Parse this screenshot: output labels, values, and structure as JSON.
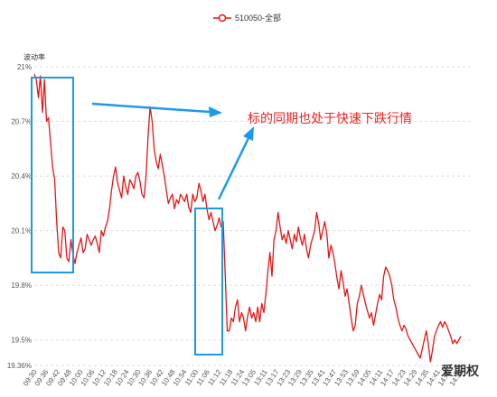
{
  "chart_data": {
    "type": "line",
    "legend": {
      "label": "510050-全部",
      "placement": "top-center"
    },
    "ylabel": "波动率",
    "ylim": [
      19.36,
      21.0
    ],
    "y_ticks": [
      "21%",
      "20.7%",
      "20.4%",
      "20.1%",
      "19.8%",
      "19.5%",
      "19.36%"
    ],
    "y_tick_values": [
      21.0,
      20.7,
      20.4,
      20.1,
      19.8,
      19.5,
      19.36
    ],
    "x_ticks": [
      "09:30",
      "09:36",
      "09:42",
      "09:48",
      "10:00",
      "10:06",
      "10:12",
      "10:18",
      "10:24",
      "10:30",
      "10:36",
      "10:42",
      "10:48",
      "10:54",
      "11:00",
      "11:06",
      "11:12",
      "11:18",
      "11:24",
      "13:05",
      "13:11",
      "13:17",
      "13:23",
      "13:29",
      "13:35",
      "13:41",
      "13:47",
      "13:53",
      "13:59",
      "14:05",
      "14:11",
      "14:17",
      "14:23",
      "14:29",
      "14:35",
      "14:41",
      "14:47",
      "14:53"
    ],
    "grid": "horizontal-dashed",
    "series": [
      {
        "name": "510050-全部",
        "color": "#ee1111",
        "values": [
          20.96,
          20.93,
          20.83,
          20.95,
          20.75,
          20.93,
          20.7,
          20.72,
          20.58,
          20.45,
          20.38,
          20.15,
          19.98,
          19.95,
          20.12,
          20.1,
          19.95,
          19.93,
          20.05,
          19.97,
          19.92,
          19.98,
          20.02,
          20.06,
          19.98,
          20.0,
          20.08,
          20.05,
          20.02,
          20.05,
          20.07,
          20.03,
          19.98,
          20.1,
          20.07,
          20.12,
          20.15,
          20.22,
          20.32,
          20.4,
          20.45,
          20.36,
          20.32,
          20.28,
          20.4,
          20.34,
          20.3,
          20.38,
          20.36,
          20.33,
          20.4,
          20.42,
          20.37,
          20.3,
          20.28,
          20.4,
          20.62,
          20.78,
          20.7,
          20.55,
          20.48,
          20.44,
          20.52,
          20.46,
          20.4,
          20.32,
          20.25,
          20.28,
          20.3,
          20.22,
          20.27,
          20.25,
          20.3,
          20.28,
          20.26,
          20.3,
          20.23,
          20.2,
          20.3,
          20.26,
          20.28,
          20.36,
          20.32,
          20.26,
          20.3,
          20.22,
          20.16,
          20.2,
          20.15,
          20.1,
          20.13,
          20.17,
          20.12,
          20.15,
          19.85,
          19.55,
          19.55,
          19.62,
          19.6,
          19.68,
          19.72,
          19.6,
          19.65,
          19.62,
          19.55,
          19.63,
          19.68,
          19.62,
          19.65,
          19.6,
          19.68,
          19.6,
          19.7,
          19.65,
          19.75,
          19.88,
          19.98,
          19.85,
          20.05,
          20.1,
          20.2,
          20.12,
          20.05,
          20.08,
          20.03,
          20.1,
          20.05,
          20.0,
          20.08,
          20.04,
          20.12,
          20.06,
          20.02,
          20.08,
          20.0,
          19.95,
          20.02,
          20.06,
          20.1,
          20.2,
          20.14,
          20.05,
          20.1,
          20.15,
          20.08,
          19.95,
          20.02,
          19.98,
          19.92,
          19.84,
          19.78,
          19.88,
          19.82,
          19.74,
          19.78,
          19.7,
          19.62,
          19.55,
          19.58,
          19.7,
          19.74,
          19.8,
          19.75,
          19.7,
          19.66,
          19.62,
          19.65,
          19.58,
          19.64,
          19.7,
          19.75,
          19.72,
          19.85,
          19.9,
          19.88,
          19.85,
          19.8,
          19.72,
          19.68,
          19.62,
          19.58,
          19.55,
          19.58,
          19.56,
          19.52,
          19.5,
          19.48,
          19.46,
          19.44,
          19.42,
          19.4,
          19.45,
          19.5,
          19.55,
          19.48,
          19.38,
          19.44,
          19.52,
          19.55,
          19.58,
          19.6,
          19.57,
          19.6,
          19.58,
          19.55,
          19.52,
          19.48,
          19.5,
          19.48,
          19.5,
          19.52
        ]
      }
    ],
    "annotation": "标的同期也处于快速下跌行情"
  },
  "watermark": "爱期权"
}
